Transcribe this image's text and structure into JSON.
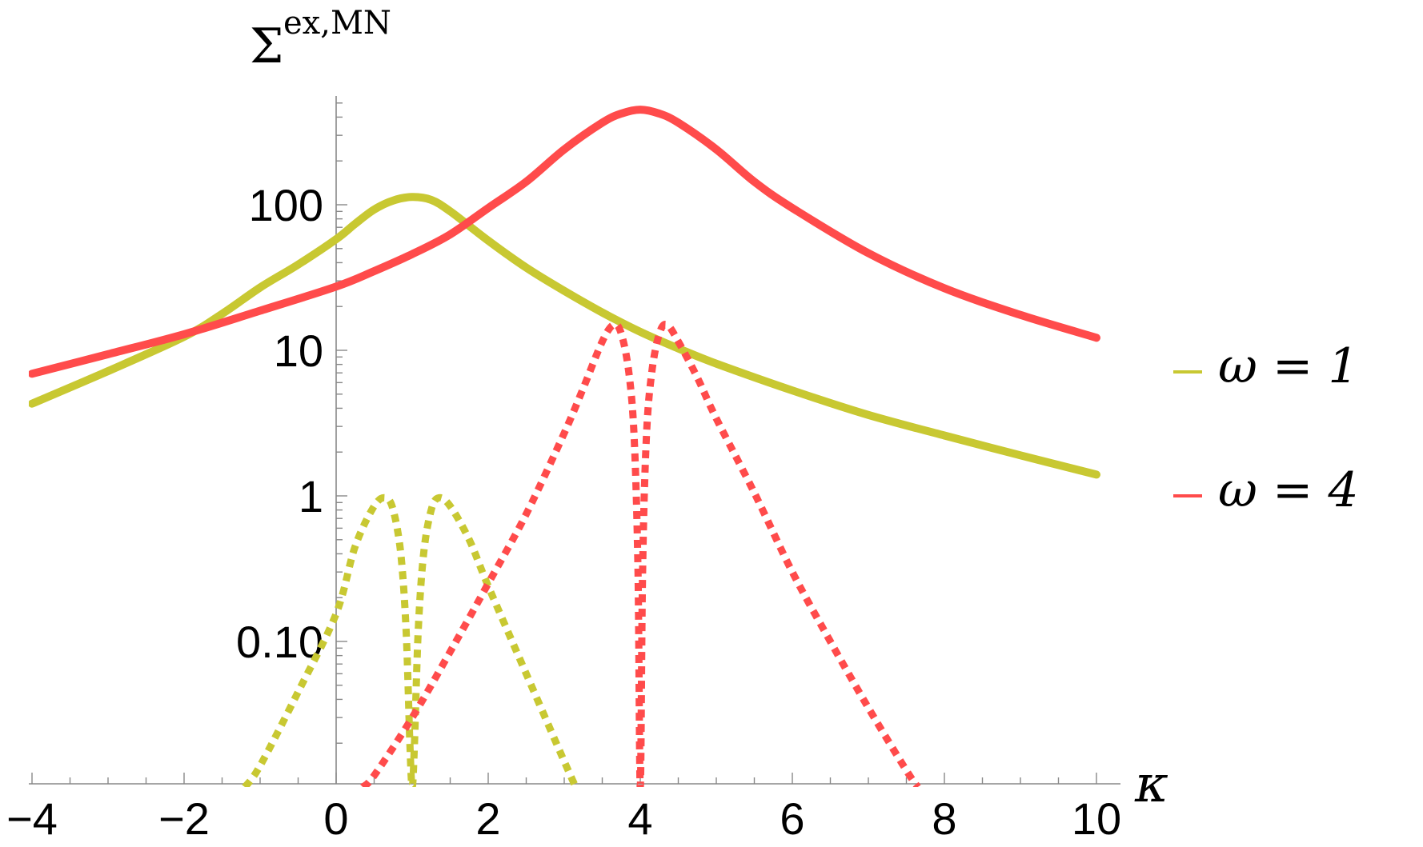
{
  "chart_data": {
    "type": "line",
    "title": "",
    "ylabel": "Σ^{ex,MN}",
    "ylabel_main": "Σ",
    "ylabel_sup": "ex,MN",
    "xlabel": "κ",
    "xlim": [
      -4,
      10
    ],
    "ylim": [
      0.01,
      600
    ],
    "yscale": "log",
    "x_ticks": [
      -4,
      -2,
      0,
      2,
      4,
      6,
      8,
      10
    ],
    "x_tick_labels": [
      "−4",
      "−2",
      "0",
      "2",
      "4",
      "6",
      "8",
      "10"
    ],
    "y_ticks": [
      0.1,
      1,
      10,
      100
    ],
    "y_tick_labels": [
      "0.10",
      "1",
      "10",
      "100"
    ],
    "grid": false,
    "legend_position": "right",
    "legend": [
      {
        "label": "ω = 1",
        "color": "#c8c832"
      },
      {
        "label": "ω = 4",
        "color": "#ff4b4b"
      }
    ],
    "series": [
      {
        "label": "ω = 1 (solid)",
        "color": "#c8c832",
        "style": "solid",
        "x": [
          -4,
          -3,
          -2,
          -1.5,
          -1,
          -0.5,
          0,
          0.25,
          0.5,
          0.75,
          1,
          1.25,
          1.5,
          2,
          2.5,
          3,
          3.5,
          4,
          4.5,
          5,
          6,
          7,
          8,
          9,
          10
        ],
        "y": [
          4.3,
          7.2,
          12.4,
          17.8,
          27,
          38.8,
          58,
          74,
          92.7,
          107,
          113,
          108,
          90.2,
          56.7,
          37,
          25.6,
          18.2,
          13.4,
          10.3,
          8.1,
          5.3,
          3.6,
          2.6,
          1.9,
          1.4
        ]
      },
      {
        "label": "ω = 4 (solid)",
        "color": "#ff4b4b",
        "style": "solid",
        "x": [
          -4,
          -3,
          -2,
          -1,
          0,
          0.5,
          1,
          1.5,
          2,
          2.5,
          3,
          3.5,
          3.75,
          4,
          4.25,
          4.5,
          5,
          5.5,
          6,
          7,
          8,
          9,
          10
        ],
        "y": [
          6.9,
          9.4,
          12.9,
          18.7,
          27.4,
          35,
          45.8,
          62.5,
          95,
          144,
          240,
          366,
          423,
          450,
          423,
          366,
          240,
          144,
          95,
          46.5,
          26.7,
          17.5,
          12.2
        ]
      },
      {
        "label": "ω = 1 (dotted)",
        "color": "#c8c832",
        "style": "dotted",
        "x": [
          -1.2,
          -1,
          -0.5,
          0,
          0.25,
          0.5,
          0.65,
          0.75,
          0.85,
          0.92,
          0.97,
          1.0,
          1.03,
          1.08,
          1.15,
          1.25,
          1.35,
          1.5,
          1.75,
          2,
          2.5,
          3,
          3.15
        ],
        "y": [
          0.01,
          0.014,
          0.045,
          0.155,
          0.45,
          0.85,
          0.97,
          0.8,
          0.4,
          0.12,
          0.02,
          0.01,
          0.02,
          0.12,
          0.4,
          0.8,
          0.97,
          0.85,
          0.5,
          0.24,
          0.06,
          0.015,
          0.01
        ]
      },
      {
        "label": "ω = 4 (dotted)",
        "color": "#ff4b4b",
        "style": "dotted",
        "x": [
          0.35,
          0.5,
          1,
          1.5,
          2,
          2.5,
          3,
          3.25,
          3.5,
          3.65,
          3.75,
          3.85,
          3.92,
          3.97,
          4.0,
          4.03,
          4.08,
          4.15,
          4.25,
          4.35,
          4.5,
          4.75,
          5,
          5.5,
          6,
          6.5,
          7,
          7.5,
          7.65
        ],
        "y": [
          0.01,
          0.012,
          0.03,
          0.085,
          0.25,
          0.75,
          2.7,
          5.5,
          11.5,
          15,
          13,
          7,
          2.5,
          0.3,
          0.01,
          0.3,
          2.5,
          7,
          13,
          15,
          11.5,
          6.5,
          3.4,
          1.05,
          0.3,
          0.1,
          0.035,
          0.013,
          0.01
        ]
      }
    ]
  }
}
